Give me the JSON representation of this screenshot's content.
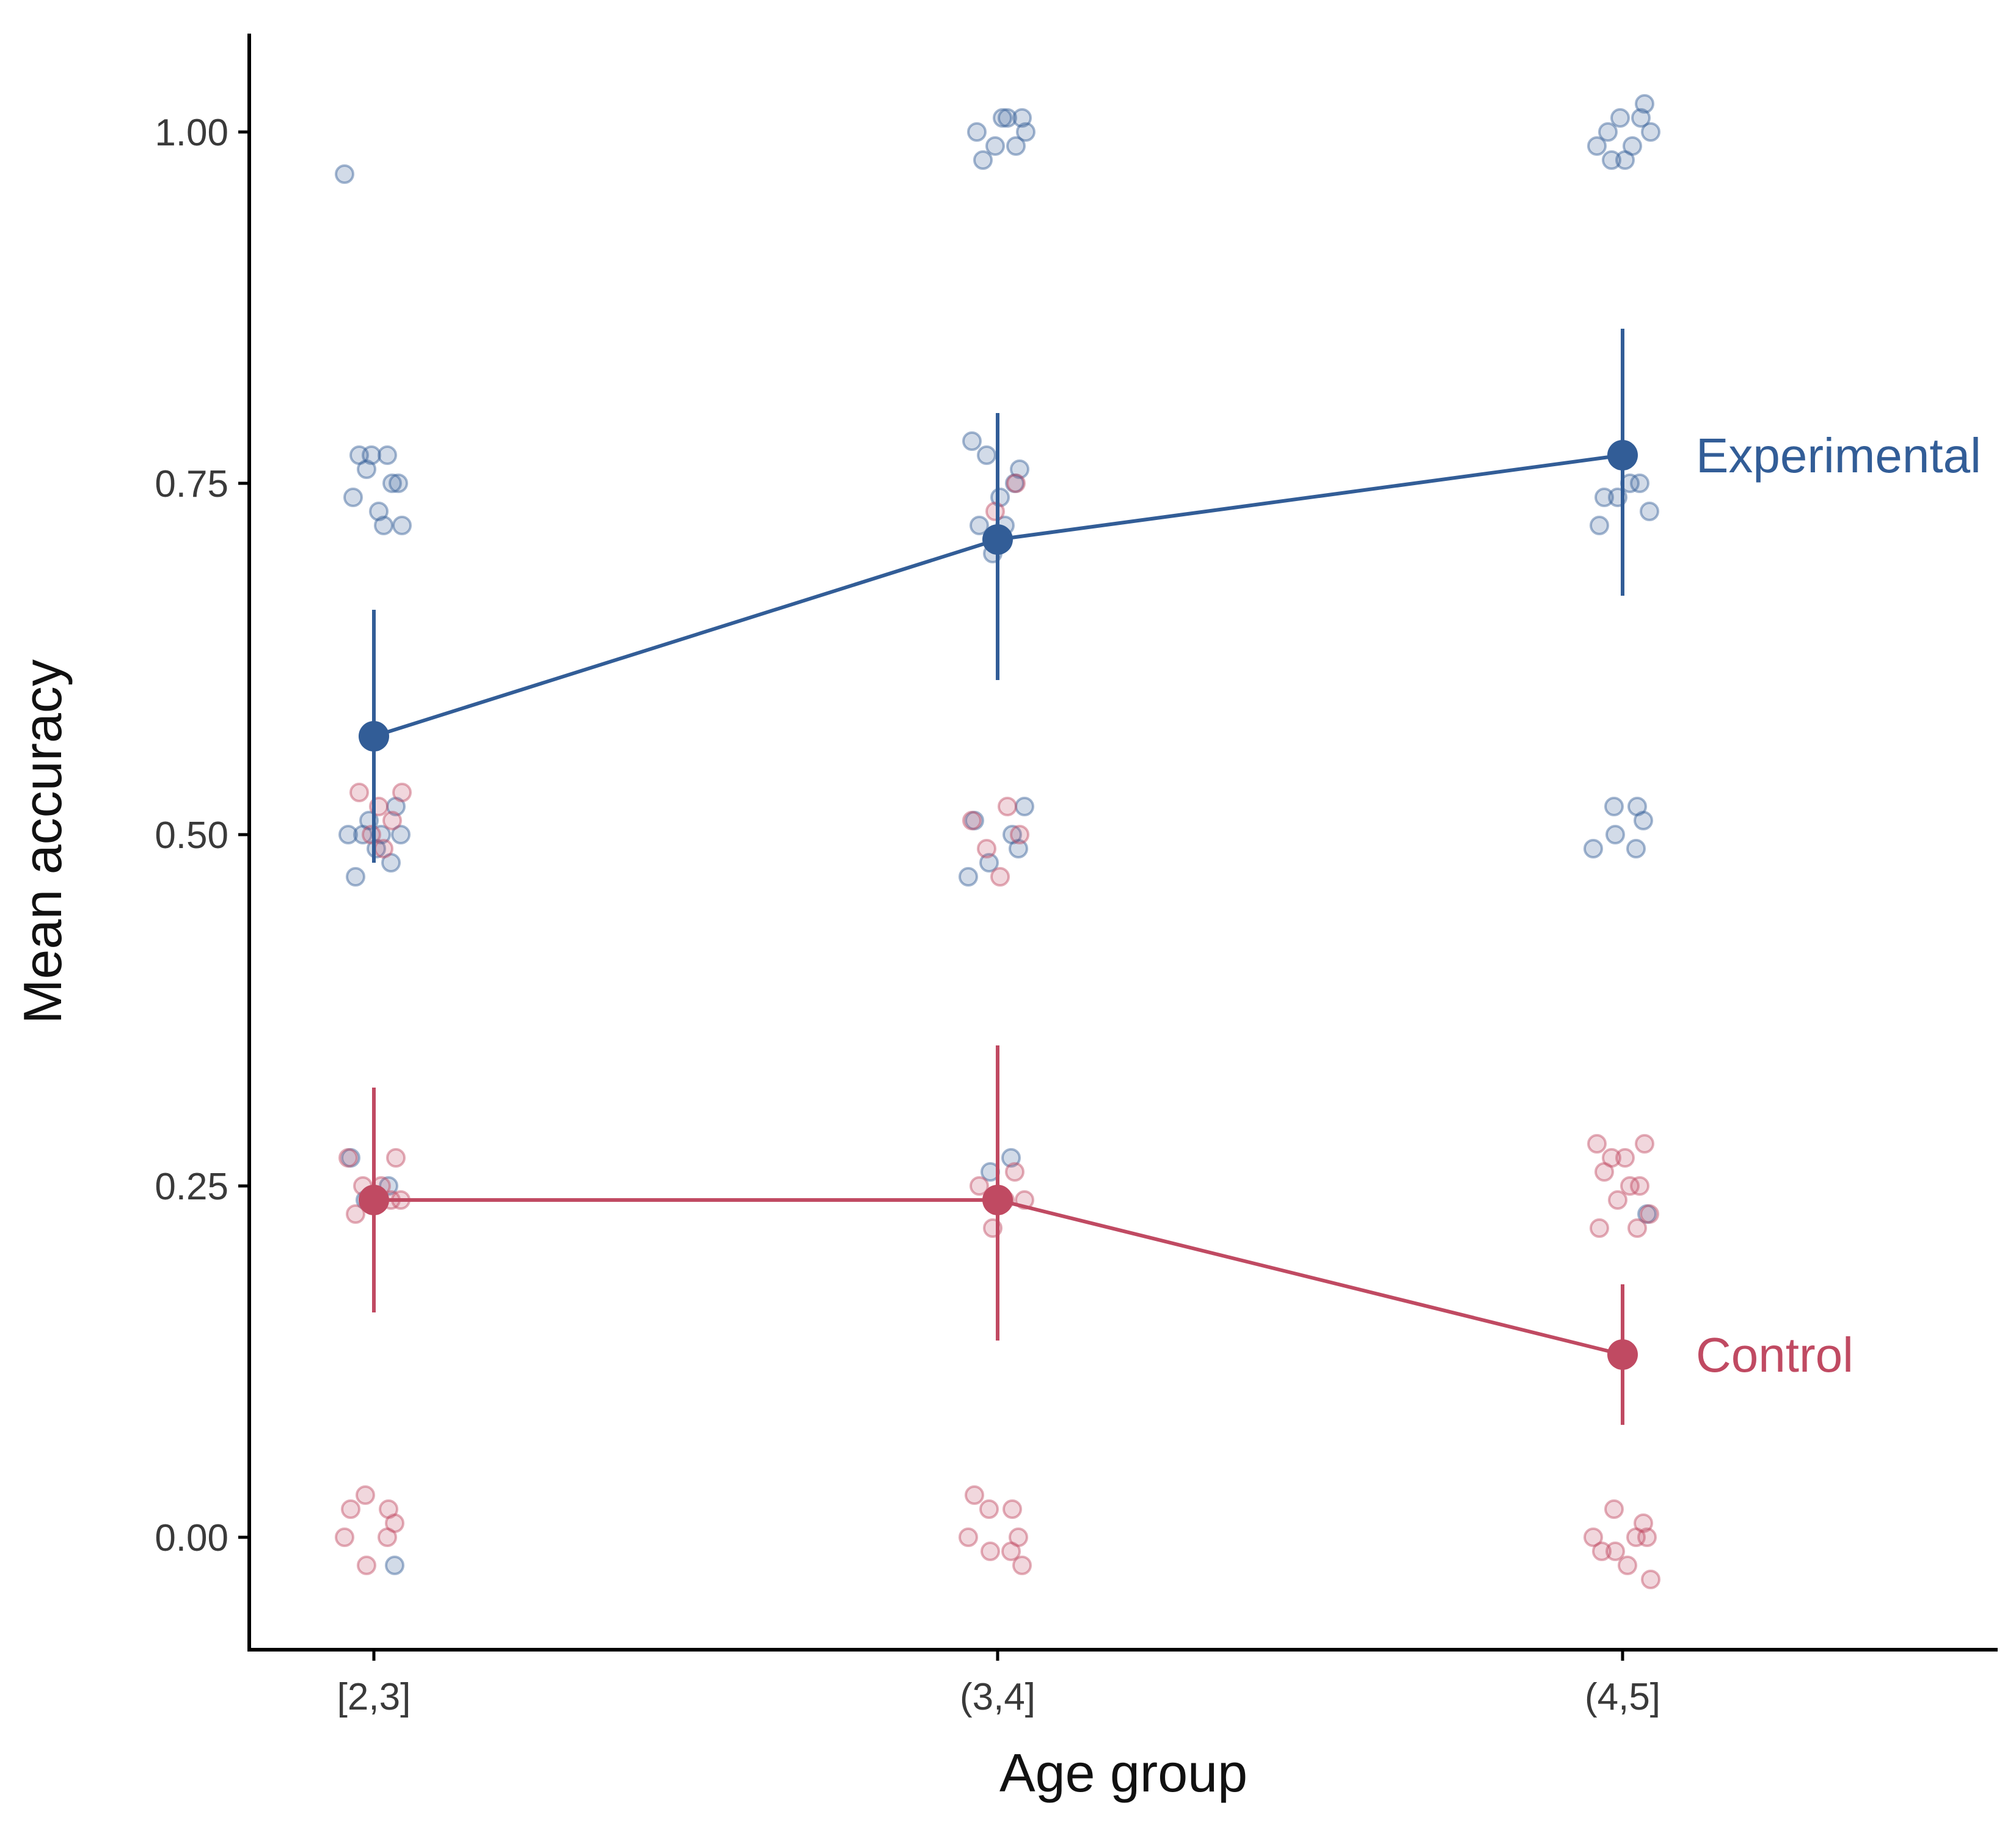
{
  "chart_data": {
    "type": "line",
    "title": "",
    "xlabel": "Age group",
    "ylabel": "Mean accuracy",
    "categories": [
      "[2,3]",
      "(3,4]",
      "(4,5]"
    ],
    "ylim": [
      -0.08,
      1.07
    ],
    "yticks": [
      0.0,
      0.25,
      0.5,
      0.75,
      1.0
    ],
    "ytick_labels": [
      "0.00",
      "0.25",
      "0.50",
      "0.75",
      "1.00"
    ],
    "grid": false,
    "legend": "direct labels at line ends",
    "series": [
      {
        "name": "Experimental",
        "color": "#325d97",
        "means": [
          0.57,
          0.71,
          0.77
        ],
        "error_low": [
          0.48,
          0.61,
          0.67
        ],
        "error_high": [
          0.66,
          0.8,
          0.86
        ],
        "points": [
          [
            0.97,
            0.77,
            0.76,
            0.75,
            0.74,
            0.73,
            0.72,
            0.77,
            0.75,
            0.77,
            0.72,
            0.5,
            0.52,
            0.5,
            0.49,
            0.48,
            0.47,
            0.5,
            0.51,
            0.5,
            0.27,
            0.25,
            0.24,
            -0.02
          ],
          [
            1.01,
            1.0,
            1.01,
            1.0,
            0.98,
            0.99,
            0.99,
            1.01,
            0.78,
            0.76,
            0.77,
            0.74,
            0.75,
            0.72,
            0.72,
            0.7,
            0.52,
            0.51,
            0.5,
            0.48,
            0.49,
            0.47,
            0.27,
            0.26
          ],
          [
            1.0,
            1.0,
            1.01,
            1.01,
            0.99,
            0.99,
            1.02,
            0.98,
            0.98,
            0.75,
            0.74,
            0.75,
            0.74,
            0.73,
            0.72,
            0.52,
            0.52,
            0.51,
            0.49,
            0.49,
            0.5,
            0.23
          ]
        ]
      },
      {
        "name": "Control",
        "color": "#c04a62",
        "means": [
          0.24,
          0.24,
          0.13
        ],
        "error_low": [
          0.16,
          0.14,
          0.08
        ],
        "error_high": [
          0.32,
          0.35,
          0.18
        ],
        "points": [
          [
            0.52,
            0.53,
            0.53,
            0.51,
            0.5,
            0.49,
            0.27,
            0.27,
            0.25,
            0.24,
            0.24,
            0.23,
            0.25,
            0.24,
            0.24,
            0.02,
            0.02,
            0.03,
            0.01,
            0.0,
            0.0,
            -0.02
          ],
          [
            0.75,
            0.73,
            0.52,
            0.51,
            0.5,
            0.49,
            0.47,
            0.26,
            0.25,
            0.24,
            0.22,
            0.24,
            0.03,
            0.02,
            0.02,
            0.0,
            0.0,
            -0.01,
            -0.01,
            -0.02
          ],
          [
            0.28,
            0.28,
            0.27,
            0.27,
            0.25,
            0.26,
            0.25,
            0.24,
            0.23,
            0.22,
            0.22,
            0.02,
            0.01,
            0.0,
            0.0,
            -0.01,
            0.0,
            -0.01,
            -0.02,
            -0.03
          ]
        ]
      }
    ]
  }
}
